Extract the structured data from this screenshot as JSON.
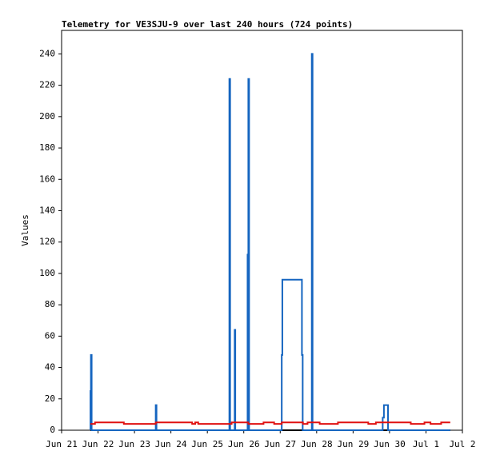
{
  "chart_data": {
    "type": "line",
    "title": "Telemetry for VE3SJU-9 over last 240 hours (724 points)",
    "y_label": "Values",
    "xlim": [
      0,
      264
    ],
    "xticks": [
      {
        "value": 0,
        "label": "Jun 21"
      },
      {
        "value": 24,
        "label": "Jun 22"
      },
      {
        "value": 48,
        "label": "Jun 23"
      },
      {
        "value": 72,
        "label": "Jun 24"
      },
      {
        "value": 96,
        "label": "Jun 25"
      },
      {
        "value": 120,
        "label": "Jun 26"
      },
      {
        "value": 144,
        "label": "Jun 27"
      },
      {
        "value": 168,
        "label": "Jun 28"
      },
      {
        "value": 192,
        "label": "Jun 29"
      },
      {
        "value": 216,
        "label": "Jun 30"
      },
      {
        "value": 240,
        "label": "Jul 1"
      },
      {
        "value": 264,
        "label": "Jul 2"
      }
    ],
    "ylim": [
      0,
      255
    ],
    "yticks": [
      0,
      20,
      40,
      60,
      80,
      100,
      120,
      140,
      160,
      180,
      200,
      220,
      240
    ],
    "series": [
      {
        "color": "#000000",
        "x": [
          19,
          256
        ],
        "values": [
          0,
          0
        ]
      },
      {
        "color": "#1565c0",
        "x": [
          19,
          19,
          19.3,
          19.3,
          19.8,
          19.8,
          62,
          62,
          62.5,
          62.5,
          110.5,
          110.5,
          111,
          111,
          114,
          114,
          114.4,
          114.4,
          122.5,
          122.5,
          123,
          123,
          123.5,
          123.5,
          145,
          145,
          145.4,
          145.4,
          158.3,
          158.3,
          158.8,
          158.8,
          164.8,
          164.8,
          165.3,
          165.3,
          211.5,
          211.5,
          212.3,
          212.3,
          215,
          215,
          256
        ],
        "values": [
          0,
          25,
          25,
          48,
          48,
          0,
          0,
          16,
          16,
          0,
          0,
          224,
          224,
          0,
          0,
          64,
          64,
          0,
          0,
          112,
          112,
          224,
          224,
          0,
          0,
          48,
          48,
          96,
          96,
          48,
          48,
          0,
          0,
          240,
          240,
          0,
          0,
          8,
          8,
          16,
          16,
          0,
          0
        ]
      },
      {
        "color": "#e01010",
        "x": [
          19,
          22,
          22,
          41,
          41,
          62,
          62,
          86,
          86,
          88,
          88,
          90,
          90,
          112,
          112,
          123,
          123,
          133,
          133,
          140,
          140,
          145,
          145,
          159,
          159,
          162,
          162,
          170,
          170,
          182,
          182,
          202,
          202,
          207,
          207,
          230,
          230,
          239,
          239,
          243,
          243,
          250,
          250,
          256
        ],
        "values": [
          4,
          4,
          5,
          5,
          4,
          4,
          5,
          5,
          4,
          4,
          5,
          5,
          4,
          4,
          5,
          5,
          4,
          4,
          5,
          5,
          4,
          4,
          5,
          5,
          4,
          4,
          5,
          5,
          4,
          4,
          5,
          5,
          4,
          4,
          5,
          5,
          4,
          4,
          5,
          5,
          4,
          4,
          5,
          5
        ]
      }
    ]
  }
}
